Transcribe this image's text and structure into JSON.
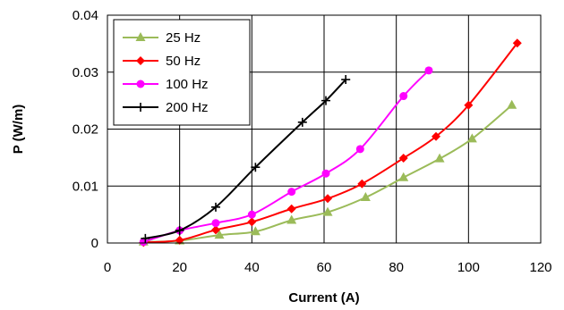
{
  "chart_data": {
    "type": "line",
    "xlabel": "Current (A)",
    "ylabel": "P (W/m)",
    "xlim": [
      0,
      120
    ],
    "ylim": [
      0,
      0.04
    ],
    "xticks": [
      0,
      20,
      40,
      60,
      80,
      100,
      120
    ],
    "yticks": [
      0,
      0.01,
      0.02,
      0.03,
      0.04
    ],
    "xtick_labels": [
      "0",
      "20",
      "40",
      "60",
      "80",
      "100",
      "120"
    ],
    "ytick_labels": [
      "0",
      "0.01",
      "0.02",
      "0.03",
      "0.04"
    ],
    "grid": true,
    "legend_position": "top-left",
    "series": [
      {
        "name": "25 Hz",
        "color": "#9BBB59",
        "marker": "triangle",
        "points": [
          [
            10,
            0.0002
          ],
          [
            20,
            0.0004
          ],
          [
            31,
            0.0014
          ],
          [
            41,
            0.002
          ],
          [
            51,
            0.004
          ],
          [
            61,
            0.0054
          ],
          [
            71.5,
            0.008
          ],
          [
            82,
            0.0115
          ],
          [
            92,
            0.0148
          ],
          [
            101,
            0.0183
          ],
          [
            112,
            0.0242
          ]
        ]
      },
      {
        "name": "50 Hz",
        "color": "#FF0000",
        "marker": "diamond",
        "points": [
          [
            10,
            0.0001
          ],
          [
            20,
            0.0005
          ],
          [
            30,
            0.0023
          ],
          [
            40,
            0.0037
          ],
          [
            51,
            0.006
          ],
          [
            61,
            0.0078
          ],
          [
            70.5,
            0.0104
          ],
          [
            82,
            0.0149
          ],
          [
            91,
            0.0187
          ],
          [
            100,
            0.0242
          ],
          [
            113.5,
            0.0351
          ]
        ]
      },
      {
        "name": "100 Hz",
        "color": "#FF00FF",
        "marker": "circle",
        "points": [
          [
            10,
            0.0002
          ],
          [
            20,
            0.0022
          ],
          [
            30,
            0.0035
          ],
          [
            40,
            0.005
          ],
          [
            51,
            0.009
          ],
          [
            60.5,
            0.0122
          ],
          [
            70,
            0.0165
          ],
          [
            82,
            0.0258
          ],
          [
            89,
            0.0303
          ]
        ]
      },
      {
        "name": "200 Hz",
        "color": "#000000",
        "marker": "plus",
        "points": [
          [
            10.5,
            0.0008
          ],
          [
            20,
            0.0022
          ],
          [
            30,
            0.0063
          ],
          [
            41,
            0.0133
          ],
          [
            54,
            0.0212
          ],
          [
            60.5,
            0.025
          ],
          [
            66,
            0.0287
          ]
        ]
      }
    ]
  }
}
